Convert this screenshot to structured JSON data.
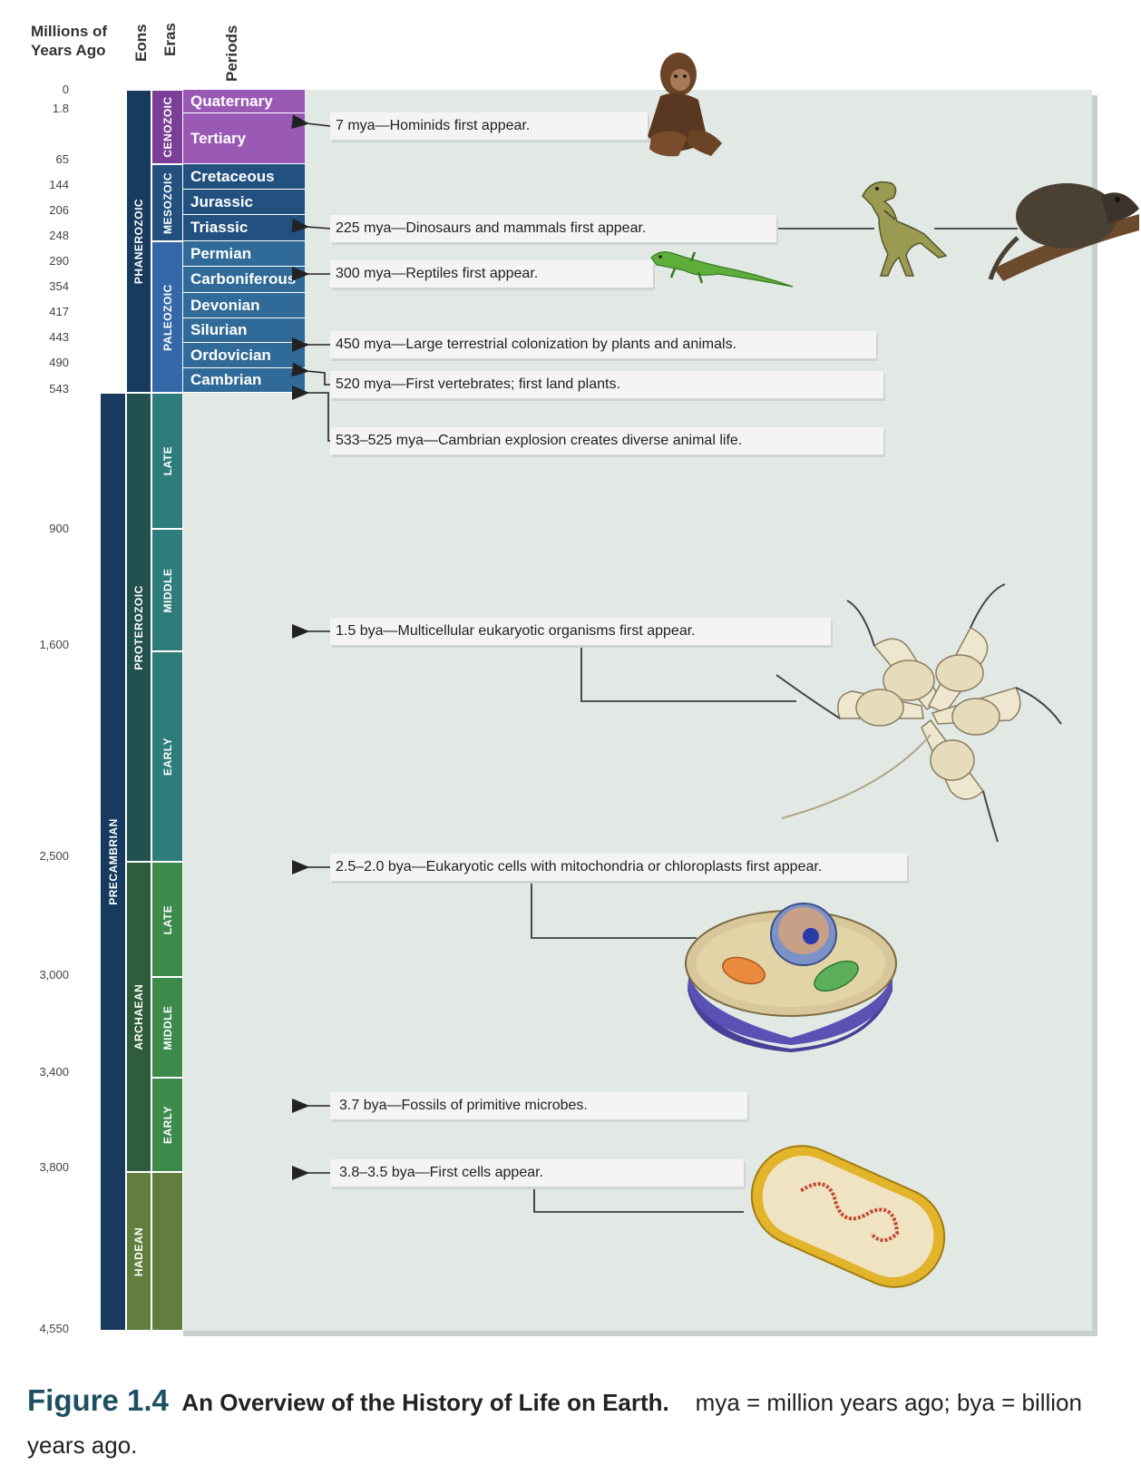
{
  "headers": {
    "millions": "Millions of Years Ago",
    "eons": "Eons",
    "eras": "Eras",
    "periods": "Periods"
  },
  "ticks": [
    "0",
    "1.8",
    "65",
    "144",
    "206",
    "248",
    "290",
    "354",
    "417",
    "443",
    "490",
    "543",
    "900",
    "1,600",
    "2,500",
    "3,000",
    "3,400",
    "3,800",
    "4,550"
  ],
  "supereon": "PRECAMBRIAN",
  "eons": [
    "PHANEROZOIC",
    "PROTEROZOIC",
    "ARCHAEAN",
    "HADEAN"
  ],
  "eras": [
    "CENOZOIC",
    "MESOZOIC",
    "PALEOZOIC",
    "LATE",
    "MIDDLE",
    "EARLY",
    "LATE",
    "MIDDLE",
    "EARLY"
  ],
  "periods": [
    "Quaternary",
    "Tertiary",
    "Cretaceous",
    "Jurassic",
    "Triassic",
    "Permian",
    "Carboniferous",
    "Devonian",
    "Silurian",
    "Ordovician",
    "Cambrian"
  ],
  "events": [
    "7 mya—Hominids first appear.",
    "225 mya—Dinosaurs and mammals first appear.",
    "300 mya—Reptiles first appear.",
    "450 mya—Large terrestrial colonization by plants and animals.",
    "520 mya—First vertebrates; first land plants.",
    "533–525 mya—Cambrian explosion creates diverse animal life.",
    "1.5 bya—Multicellular eukaryotic organisms first appear.",
    "2.5–2.0 bya—Eukaryotic cells with mitochondria or chloroplasts first appear.",
    "3.7 bya—Fossils of primitive microbes.",
    "3.8–3.5 bya—First cells appear."
  ],
  "caption": {
    "number": "Figure 1.4",
    "title": "An Overview of the History of Life on Earth.",
    "text": "mya = million years ago; bya = billion years ago."
  },
  "colors": {
    "cenozoic": "#9b59b6",
    "mesozoic": "#22507f",
    "paleozoic": "#2f6a98",
    "phanerozoic": "#173a5e",
    "precambrian": "#173a5e",
    "proterozoic": "#22504f",
    "proterozoic_era": "#2e7d7a",
    "archaean": "#2f5d3b",
    "archaean_era": "#3c8a4c",
    "hadean": "#627e3f"
  }
}
